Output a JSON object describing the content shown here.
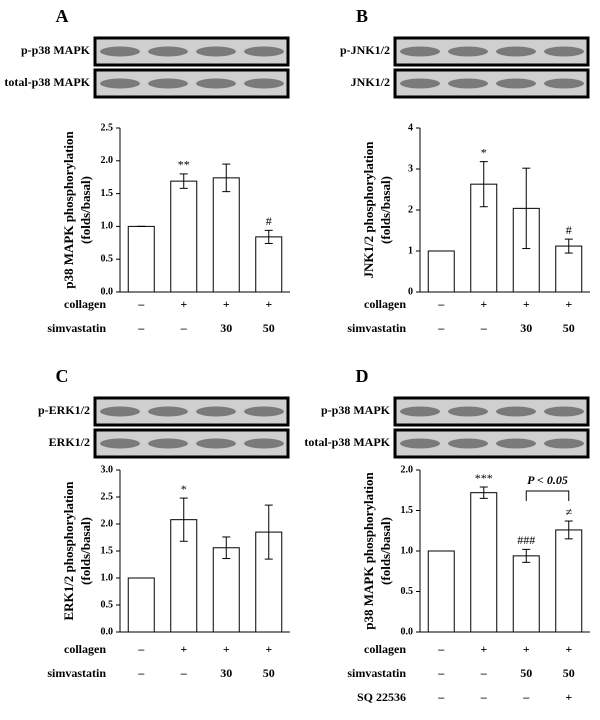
{
  "chart_data": [
    {
      "type": "bar",
      "panel": "A",
      "blot_labels": [
        "p-p38 MAPK",
        "total-p38 MAPK"
      ],
      "ylabel": [
        "p38 MAPK phosphorylation",
        "(folds/basal)"
      ],
      "categories": [
        null,
        null,
        null,
        null
      ],
      "values": [
        1,
        1.69,
        1.74,
        0.84
      ],
      "errors": [
        0,
        0.11,
        0.21,
        0.1
      ],
      "annotations": [
        null,
        "**",
        null,
        "#"
      ],
      "ylim": [
        0,
        2.5
      ],
      "yticks": [
        {
          "value": 0,
          "label": "0.0"
        },
        0.5,
        {
          "value": 1,
          "label": "1.0"
        },
        1.5,
        {
          "value": 2,
          "label": "2.0"
        },
        2.5
      ],
      "color": "#ffffff",
      "conditions": [
        {
          "name": "collagen",
          "values": [
            "–",
            "+",
            "+",
            "+"
          ]
        },
        {
          "name": "simvastatin",
          "values": [
            "–",
            "–",
            "30",
            "50"
          ]
        }
      ]
    },
    {
      "type": "bar",
      "panel": "B",
      "blot_labels": [
        "p-JNK1/2",
        "JNK1/2"
      ],
      "ylabel": [
        "JNK1/2 phosphorylation",
        "(folds/basal)"
      ],
      "categories": [
        null,
        null,
        null,
        null
      ],
      "values": [
        1,
        2.63,
        2.04,
        1.12
      ],
      "errors": [
        0,
        0.55,
        0.98,
        0.17
      ],
      "annotations": [
        null,
        "*",
        null,
        "#"
      ],
      "ylim": [
        0,
        4
      ],
      "yticks": [
        0,
        1,
        2,
        3,
        4
      ],
      "color": "#ffffff",
      "conditions": [
        {
          "name": "collagen",
          "values": [
            "–",
            "+",
            "+",
            "+"
          ]
        },
        {
          "name": "simvastatin",
          "values": [
            "–",
            "–",
            "30",
            "50"
          ]
        }
      ]
    },
    {
      "type": "bar",
      "panel": "C",
      "blot_labels": [
        "p-ERK1/2",
        "ERK1/2"
      ],
      "ylabel": [
        "ERK1/2 phosphorylation",
        "(folds/basal)"
      ],
      "categories": [
        null,
        null,
        null,
        null
      ],
      "values": [
        1,
        2.08,
        1.56,
        1.85
      ],
      "errors": [
        0,
        0.4,
        0.2,
        0.5
      ],
      "annotations": [
        null,
        "*",
        null,
        null
      ],
      "ylim": [
        0,
        3
      ],
      "yticks": [
        {
          "value": 0,
          "label": "0.0"
        },
        0.5,
        {
          "value": 1,
          "label": "1.0"
        },
        1.5,
        {
          "value": 2,
          "label": "2.0"
        },
        2.5,
        {
          "value": 3,
          "label": "3.0"
        }
      ],
      "color": "#ffffff",
      "conditions": [
        {
          "name": "collagen",
          "values": [
            "–",
            "+",
            "+",
            "+"
          ]
        },
        {
          "name": "simvastatin",
          "values": [
            "–",
            "–",
            "30",
            "50"
          ]
        }
      ]
    },
    {
      "type": "bar",
      "panel": "D",
      "blot_labels": [
        "p-p38 MAPK",
        "total-p38 MAPK"
      ],
      "ylabel": [
        "p38 MAPK phosphorylation",
        "(folds/basal)"
      ],
      "categories": [
        null,
        null,
        null,
        null
      ],
      "values": [
        1,
        1.72,
        0.94,
        1.26
      ],
      "errors": [
        0,
        0.07,
        0.08,
        0.11
      ],
      "annotations": [
        null,
        "***",
        "###",
        "≠"
      ],
      "bracket_label": "P < 0.05",
      "ylim": [
        0,
        2
      ],
      "yticks": [
        {
          "value": 0,
          "label": "0.0"
        },
        0.5,
        {
          "value": 1,
          "label": "1.0"
        },
        1.5,
        {
          "value": 2,
          "label": "2.0"
        }
      ],
      "color": "#ffffff",
      "conditions": [
        {
          "name": "collagen",
          "values": [
            "–",
            "+",
            "+",
            "+"
          ]
        },
        {
          "name": "simvastatin",
          "values": [
            "–",
            "–",
            "50",
            "50"
          ]
        },
        {
          "name": "SQ 22536",
          "values": [
            "–",
            "–",
            "–",
            "+"
          ]
        }
      ]
    }
  ]
}
